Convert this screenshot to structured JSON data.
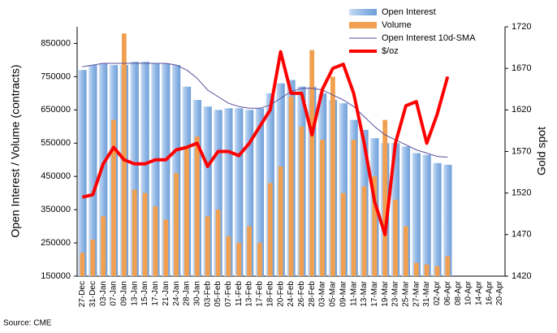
{
  "chart_data": {
    "type": "bar",
    "y_label": "Open Interest / Volume (contracts)",
    "y2_label": "Gold spot",
    "source": "Source: CME",
    "categories": [
      "27-Dec",
      "31-Dec",
      "03-Jan",
      "07-Jan",
      "09-Jan",
      "13-Jan",
      "15-Jan",
      "17-Jan",
      "21-Jan",
      "24-Jan",
      "28-Jan",
      "30-Jan",
      "03-Feb",
      "05-Feb",
      "07-Feb",
      "11-Feb",
      "13-Feb",
      "17-Feb",
      "18-Feb",
      "20-Feb",
      "24-Feb",
      "26-Feb",
      "28-Feb",
      "03-Mar",
      "05-Mar",
      "09-Mar",
      "11-Mar",
      "13-Mar",
      "17-Mar",
      "19-Mar",
      "23-Mar",
      "25-Mar",
      "27-Mar",
      "31-Mar",
      "02-Apr",
      "06-Apr",
      "08-Apr",
      "10-Apr",
      "14-Apr",
      "16-Apr",
      "20-Apr"
    ],
    "series": [
      {
        "name": "Open Interest",
        "type": "bar",
        "color": "#92b8e6",
        "values": [
          770000,
          785000,
          790000,
          785000,
          785000,
          795000,
          795000,
          790000,
          790000,
          785000,
          720000,
          680000,
          660000,
          650000,
          655000,
          655000,
          650000,
          655000,
          700000,
          730000,
          740000,
          720000,
          720000,
          700000,
          680000,
          670000,
          620000,
          590000,
          565000,
          550000,
          550000,
          540000,
          520000,
          515000,
          490000,
          485000,
          null,
          null,
          null,
          null,
          null
        ]
      },
      {
        "name": "Volume",
        "type": "bar",
        "color": "#f0a050",
        "values": [
          220000,
          260000,
          330000,
          620000,
          880000,
          410000,
          400000,
          360000,
          320000,
          460000,
          540000,
          570000,
          330000,
          350000,
          270000,
          250000,
          300000,
          250000,
          430000,
          480000,
          690000,
          600000,
          830000,
          560000,
          750000,
          400000,
          560000,
          420000,
          450000,
          620000,
          380000,
          300000,
          190000,
          185000,
          180000,
          210000,
          null,
          null,
          null,
          null,
          null
        ]
      },
      {
        "name": "Open Interest 10d-SMA",
        "type": "line",
        "color": "#5b4f9c",
        "values": [
          780000,
          785000,
          790000,
          790000,
          790000,
          790000,
          790000,
          790000,
          790000,
          785000,
          770000,
          745000,
          710000,
          690000,
          670000,
          660000,
          655000,
          655000,
          665000,
          685000,
          705000,
          715000,
          715000,
          710000,
          695000,
          680000,
          660000,
          630000,
          600000,
          575000,
          560000,
          545000,
          530000,
          520000,
          510000,
          508000,
          null,
          null,
          null,
          null,
          null
        ]
      },
      {
        "name": "$/oz",
        "type": "line",
        "axis": "y2",
        "color": "#ff0000",
        "values": [
          1515,
          1518,
          1555,
          1575,
          1560,
          1555,
          1555,
          1560,
          1560,
          1572,
          1575,
          1580,
          1552,
          1570,
          1570,
          1565,
          1580,
          1600,
          1620,
          1690,
          1640,
          1640,
          1590,
          1645,
          1670,
          1675,
          1640,
          1580,
          1510,
          1470,
          1580,
          1625,
          1630,
          1580,
          1615,
          1660,
          null,
          null,
          null,
          null,
          null
        ]
      }
    ],
    "ylim": [
      150000,
      900000
    ],
    "yticks": [
      150000,
      250000,
      350000,
      450000,
      550000,
      650000,
      750000,
      850000
    ],
    "y2lim": [
      1420,
      1720
    ],
    "y2ticks": [
      1420,
      1470,
      1520,
      1570,
      1620,
      1670,
      1720
    ],
    "grid": false
  }
}
